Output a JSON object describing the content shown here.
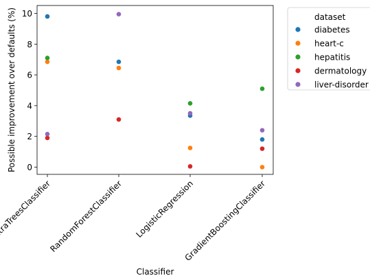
{
  "chart_data": {
    "type": "scatter",
    "xlabel": "Classifier",
    "ylabel": "Possible improvement over defaults (%)",
    "categories": [
      "ExtraTreesClassifier",
      "RandomForestClassifier",
      "LogisticRegression",
      "GradientBoostingClassifier"
    ],
    "ylim": [
      -0.5,
      10.4
    ],
    "yticks": [
      0,
      2,
      4,
      6,
      8,
      10
    ],
    "grid": false,
    "legend": {
      "title": "dataset",
      "placement": "outside-top-right"
    },
    "series": [
      {
        "name": "diabetes",
        "color": "#1f77b4",
        "values": [
          9.8,
          6.85,
          3.35,
          1.8
        ]
      },
      {
        "name": "heart-c",
        "color": "#ff7f0e",
        "values": [
          6.85,
          6.45,
          1.25,
          0.0
        ]
      },
      {
        "name": "hepatitis",
        "color": "#2ca02c",
        "values": [
          7.1,
          null,
          4.15,
          5.1
        ]
      },
      {
        "name": "dermatology",
        "color": "#d62728",
        "values": [
          1.9,
          3.1,
          0.05,
          1.2
        ]
      },
      {
        "name": "liver-disorder",
        "color": "#9467bd",
        "values": [
          2.15,
          9.95,
          3.5,
          2.4
        ]
      }
    ]
  }
}
